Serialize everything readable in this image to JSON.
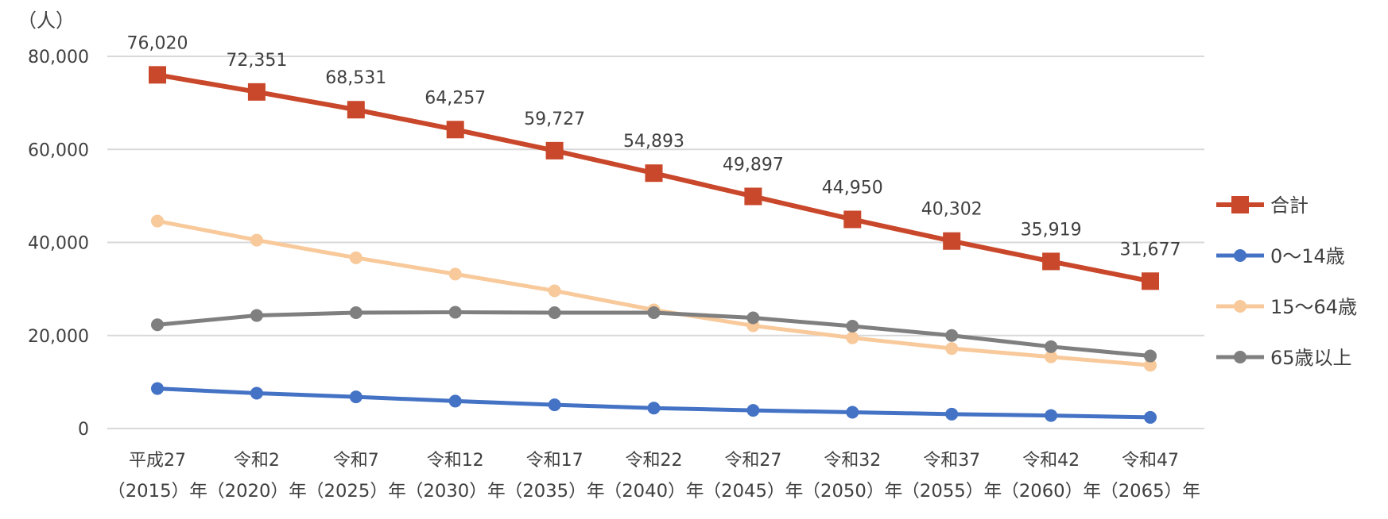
{
  "chart_data": {
    "type": "line",
    "unit_label": "（人）",
    "x": [
      {
        "line1": "平成27",
        "line2": "（2015）年"
      },
      {
        "line1": "令和2",
        "line2": "（2020）年"
      },
      {
        "line1": "令和7",
        "line2": "（2025）年"
      },
      {
        "line1": "令和12",
        "line2": "（2030）年"
      },
      {
        "line1": "令和17",
        "line2": "（2035）年"
      },
      {
        "line1": "令和22",
        "line2": "（2040）年"
      },
      {
        "line1": "令和27",
        "line2": "（2045）年"
      },
      {
        "line1": "令和32",
        "line2": "（2050）年"
      },
      {
        "line1": "令和37",
        "line2": "（2055）年"
      },
      {
        "line1": "令和42",
        "line2": "（2060）年"
      },
      {
        "line1": "令和47",
        "line2": "（2065）年"
      }
    ],
    "ylim": [
      0,
      80000
    ],
    "yticks": [
      {
        "value": 0,
        "label": "0"
      },
      {
        "value": 20000,
        "label": "20,000"
      },
      {
        "value": 40000,
        "label": "40,000"
      },
      {
        "value": 60000,
        "label": "60,000"
      },
      {
        "value": 80000,
        "label": "80,000"
      }
    ],
    "grid": true,
    "legend_position": "right",
    "series": [
      {
        "name": "合計",
        "color": "#c9472a",
        "marker": "square",
        "values": [
          76020,
          72351,
          68531,
          64257,
          59727,
          54893,
          49897,
          44950,
          40302,
          35919,
          31677
        ],
        "data_labels": [
          "76,020",
          "72,351",
          "68,531",
          "64,257",
          "59,727",
          "54,893",
          "49,897",
          "44,950",
          "40,302",
          "35,919",
          "31,677"
        ]
      },
      {
        "name": "0～14歳",
        "color": "#4472c4",
        "marker": "circle",
        "values": [
          8600,
          7600,
          6800,
          5900,
          5100,
          4400,
          3900,
          3500,
          3100,
          2800,
          2400
        ]
      },
      {
        "name": "15～64歳",
        "color": "#f8c99a",
        "marker": "circle",
        "values": [
          44600,
          40500,
          36700,
          33200,
          29600,
          25500,
          22100,
          19500,
          17200,
          15400,
          13600
        ]
      },
      {
        "name": "65歳以上",
        "color": "#7f7f7f",
        "marker": "circle",
        "values": [
          22300,
          24300,
          24900,
          25000,
          24900,
          24900,
          23800,
          22000,
          20000,
          17600,
          15600
        ]
      }
    ]
  }
}
